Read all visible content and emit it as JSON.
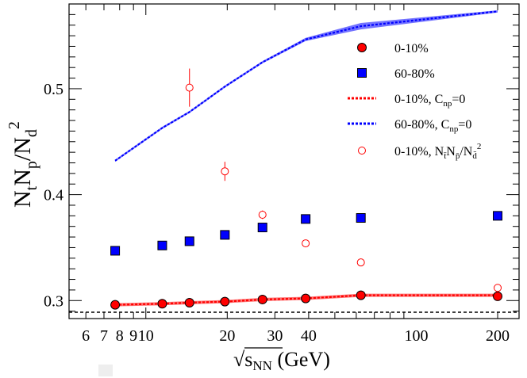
{
  "chart_data": {
    "type": "scatter",
    "title": "",
    "xlabel": "√s_NN (GeV)",
    "xlabel_parts": {
      "sqrt_symbol": "√",
      "main": "s",
      "sub": "NN",
      "unit": " (GeV)"
    },
    "ylabel": "N_t N_p / N_d^2",
    "ylabel_parts": {
      "n1": "N",
      "s1": "t",
      "n2": "N",
      "s2": "p",
      "slash": "/N",
      "s3": "d",
      "sup": "2"
    },
    "x_scale": "log",
    "xlim": [
      5.2,
      240
    ],
    "ylim": [
      0.283,
      0.58
    ],
    "x_tick_labels": [
      {
        "value": 6,
        "label": "6"
      },
      {
        "value": 7,
        "label": "7"
      },
      {
        "value": 8,
        "label": "8"
      },
      {
        "value": 9,
        "label": "9"
      },
      {
        "value": 10,
        "label": "10"
      },
      {
        "value": 20,
        "label": "20"
      },
      {
        "value": 30,
        "label": "30"
      },
      {
        "value": 40,
        "label": "40"
      },
      {
        "value": 100,
        "label": "100"
      },
      {
        "value": 200,
        "label": "200"
      }
    ],
    "y_tick_labels": [
      {
        "value": 0.3,
        "label": "0.3"
      },
      {
        "value": 0.4,
        "label": "0.4"
      },
      {
        "value": 0.5,
        "label": "0.5"
      }
    ],
    "reference_line": {
      "y": 0.289,
      "style": "dashed",
      "color": "#000000"
    },
    "series": [
      {
        "name": "0-10%",
        "kind": "filled-circle",
        "color": "#ff0000",
        "x": [
          7.7,
          11.5,
          14.5,
          19.6,
          27,
          39,
          62.4,
          200
        ],
        "y": [
          0.296,
          0.297,
          0.298,
          0.299,
          0.301,
          0.302,
          0.305,
          0.304
        ]
      },
      {
        "name": "60-80%",
        "kind": "filled-square",
        "color": "#0000ff",
        "x": [
          7.7,
          11.5,
          14.5,
          19.6,
          27,
          39,
          62.4,
          200
        ],
        "y": [
          0.347,
          0.352,
          0.356,
          0.362,
          0.369,
          0.377,
          0.378,
          0.38
        ]
      },
      {
        "name": "0-10%, C_np=0",
        "kind": "band",
        "color": "#ff0000",
        "x": [
          7.7,
          11.5,
          14.5,
          19.6,
          27,
          39,
          62.4,
          200
        ],
        "y_low": [
          0.2945,
          0.2955,
          0.2965,
          0.2975,
          0.2995,
          0.3005,
          0.3035,
          0.3035
        ],
        "y_high": [
          0.2975,
          0.2985,
          0.2995,
          0.3005,
          0.3025,
          0.3035,
          0.3065,
          0.3065
        ]
      },
      {
        "name": "60-80%, C_np=0",
        "kind": "band",
        "color": "#0000ff",
        "x": [
          7.7,
          11.5,
          14.5,
          19.6,
          27,
          39,
          62.4,
          200
        ],
        "y_low": [
          0.431,
          0.462,
          0.477,
          0.501,
          0.524,
          0.545,
          0.556,
          0.572
        ],
        "y_high": [
          0.433,
          0.464,
          0.479,
          0.503,
          0.526,
          0.548,
          0.562,
          0.574
        ]
      },
      {
        "name": "0-10%, N_t̄ N_p̄ / N_d̄^2",
        "kind": "open-circle",
        "color": "#ff0000",
        "x": [
          14.5,
          19.6,
          27,
          39,
          62.4,
          200
        ],
        "y": [
          0.501,
          0.422,
          0.381,
          0.354,
          0.336,
          0.312
        ],
        "yerr": [
          0.018,
          0.009,
          0.004,
          0.002,
          0.002,
          0.002
        ]
      }
    ],
    "legend": {
      "placement": "top-right",
      "entries": [
        {
          "label": "0-10%",
          "text_parts": {
            "a": "0-10%"
          }
        },
        {
          "label": "60-80%",
          "text_parts": {
            "a": "60-80%"
          }
        },
        {
          "label": "0-10%, C_np=0",
          "text_parts": {
            "a": "0-10%, C",
            "sub": "np",
            "b": "=0"
          }
        },
        {
          "label": "60-80%, C_np=0",
          "text_parts": {
            "a": "60-80%, C",
            "sub": "np",
            "b": "=0"
          }
        },
        {
          "label": "0-10%, N_t̄ N_p̄ / N_d̄^2",
          "text_parts": {
            "a": "0-10%, N",
            "s1": "t̄",
            "n2": "N",
            "s2": "p̄",
            "slash": "/N",
            "s3": "d̄",
            "sup": "2"
          }
        }
      ]
    }
  }
}
